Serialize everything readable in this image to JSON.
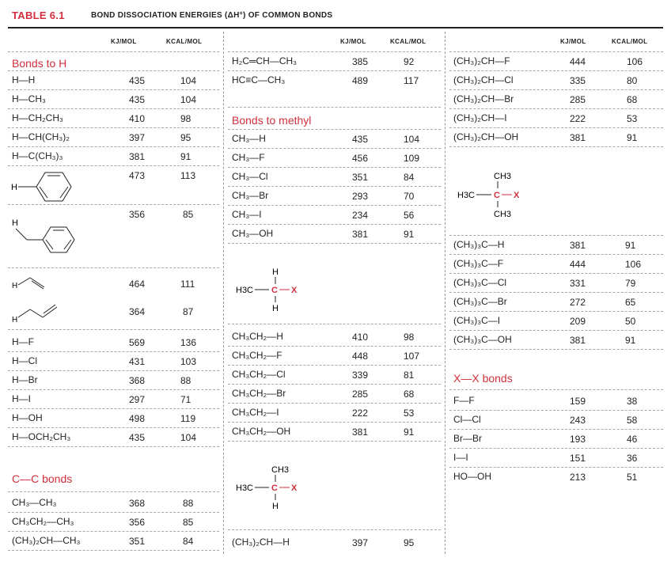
{
  "title": {
    "number": "TABLE 6.1",
    "caption": "BOND DISSOCIATION ENERGIES (ΔH°) OF COMMON BONDS"
  },
  "columns": {
    "kj": "KJ/MOL",
    "kcal": "KCAL/MOL"
  },
  "sections": {
    "bonds_to_h": "Bonds to H",
    "cc_bonds": "C—C bonds",
    "bonds_to_methyl": "Bonds to methyl",
    "xx_bonds": "X—X bonds"
  },
  "struct_labels": {
    "h": "H",
    "x": "X",
    "c": "C",
    "ch3": "CH3",
    "h3c": "H3C"
  },
  "panel1": {
    "bonds_to_h": [
      {
        "bond": "H—H",
        "kj": "435",
        "kcal": "104"
      },
      {
        "bond": "H—CH₃",
        "kj": "435",
        "kcal": "104"
      },
      {
        "bond": "H—CH₂CH₃",
        "kj": "410",
        "kcal": "98"
      },
      {
        "bond": "H—CH(CH₃)₂",
        "kj": "397",
        "kcal": "95"
      },
      {
        "bond": "H—C(CH₃)₃",
        "kj": "381",
        "kcal": "91"
      }
    ],
    "structural_rows": [
      {
        "kj": "473",
        "kcal": "113"
      },
      {
        "kj": "356",
        "kcal": "85"
      },
      {
        "kj": "464",
        "kcal": "111"
      },
      {
        "kj": "364",
        "kcal": "87"
      }
    ],
    "more_h": [
      {
        "bond": "H—F",
        "kj": "569",
        "kcal": "136"
      },
      {
        "bond": "H—Cl",
        "kj": "431",
        "kcal": "103"
      },
      {
        "bond": "H—Br",
        "kj": "368",
        "kcal": "88"
      },
      {
        "bond": "H—I",
        "kj": "297",
        "kcal": "71"
      },
      {
        "bond": "H—OH",
        "kj": "498",
        "kcal": "119"
      },
      {
        "bond": "H—OCH₂CH₃",
        "kj": "435",
        "kcal": "104"
      }
    ],
    "cc_bonds": [
      {
        "bond": "CH₃—CH₃",
        "kj": "368",
        "kcal": "88"
      },
      {
        "bond": "CH₃CH₂—CH₃",
        "kj": "356",
        "kcal": "85"
      },
      {
        "bond": "(CH₃)₂CH—CH₃",
        "kj": "351",
        "kcal": "84"
      }
    ]
  },
  "panel2": {
    "top": [
      {
        "bond": "H₂C═CH—CH₃",
        "kj": "385",
        "kcal": "92"
      },
      {
        "bond": "HC≡C—CH₃",
        "kj": "489",
        "kcal": "117"
      }
    ],
    "methyl": [
      {
        "bond": "CH₃—H",
        "kj": "435",
        "kcal": "104"
      },
      {
        "bond": "CH₃—F",
        "kj": "456",
        "kcal": "109"
      },
      {
        "bond": "CH₃—Cl",
        "kj": "351",
        "kcal": "84"
      },
      {
        "bond": "CH₃—Br",
        "kj": "293",
        "kcal": "70"
      },
      {
        "bond": "CH₃—I",
        "kj": "234",
        "kcal": "56"
      },
      {
        "bond": "CH₃—OH",
        "kj": "381",
        "kcal": "91"
      }
    ],
    "ethyl": [
      {
        "bond": "CH₃CH₂—H",
        "kj": "410",
        "kcal": "98"
      },
      {
        "bond": "CH₃CH₂—F",
        "kj": "448",
        "kcal": "107"
      },
      {
        "bond": "CH₃CH₂—Cl",
        "kj": "339",
        "kcal": "81"
      },
      {
        "bond": "CH₃CH₂—Br",
        "kj": "285",
        "kcal": "68"
      },
      {
        "bond": "CH₃CH₂—I",
        "kj": "222",
        "kcal": "53"
      },
      {
        "bond": "CH₃CH₂—OH",
        "kj": "381",
        "kcal": "91"
      }
    ],
    "isopropyl": [
      {
        "bond": "(CH₃)₂CH—H",
        "kj": "397",
        "kcal": "95"
      }
    ]
  },
  "panel3": {
    "isopropyl": [
      {
        "bond": "(CH₃)₂CH—F",
        "kj": "444",
        "kcal": "106"
      },
      {
        "bond": "(CH₃)₂CH—Cl",
        "kj": "335",
        "kcal": "80"
      },
      {
        "bond": "(CH₃)₂CH—Br",
        "kj": "285",
        "kcal": "68"
      },
      {
        "bond": "(CH₃)₂CH—I",
        "kj": "222",
        "kcal": "53"
      },
      {
        "bond": "(CH₃)₂CH—OH",
        "kj": "381",
        "kcal": "91"
      }
    ],
    "tbutyl": [
      {
        "bond": "(CH₃)₃C—H",
        "kj": "381",
        "kcal": "91"
      },
      {
        "bond": "(CH₃)₃C—F",
        "kj": "444",
        "kcal": "106"
      },
      {
        "bond": "(CH₃)₃C—Cl",
        "kj": "331",
        "kcal": "79"
      },
      {
        "bond": "(CH₃)₃C—Br",
        "kj": "272",
        "kcal": "65"
      },
      {
        "bond": "(CH₃)₃C—I",
        "kj": "209",
        "kcal": "50"
      },
      {
        "bond": "(CH₃)₃C—OH",
        "kj": "381",
        "kcal": "91"
      }
    ],
    "xx": [
      {
        "bond": "F—F",
        "kj": "159",
        "kcal": "38"
      },
      {
        "bond": "Cl—Cl",
        "kj": "243",
        "kcal": "58"
      },
      {
        "bond": "Br—Br",
        "kj": "193",
        "kcal": "46"
      },
      {
        "bond": "I—I",
        "kj": "151",
        "kcal": "36"
      },
      {
        "bond": "HO—OH",
        "kj": "213",
        "kcal": "51"
      }
    ]
  },
  "colors": {
    "accent": "#d12f3d",
    "text": "#231f20",
    "rule": "#a8a8a8"
  }
}
